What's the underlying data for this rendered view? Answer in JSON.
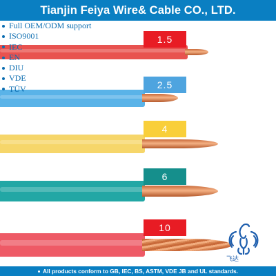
{
  "header": {
    "title": "Tianjin Feiya Wire& Cable CO., LTD."
  },
  "features": [
    "Full OEM/ODM support",
    "ISO9001",
    "IEC",
    "EN",
    "DIU",
    "VDE",
    "TÜV"
  ],
  "wires": [
    {
      "label": "1.5",
      "insulation_color": "#e8524f",
      "label_bg": "#e81c24",
      "label_text_color": "#ffffff"
    },
    {
      "label": "2.5",
      "insulation_color": "#5ab3e8",
      "label_bg": "#4ea4df",
      "label_text_color": "#ffffff"
    },
    {
      "label": "4",
      "insulation_color": "#f6d66a",
      "label_bg": "#f9cf3a",
      "label_text_color": "#ffffff"
    },
    {
      "label": "6",
      "insulation_color": "#22a7a5",
      "label_bg": "#158f8c",
      "label_text_color": "#ffffff"
    },
    {
      "label": "10",
      "insulation_color": "#ee5a66",
      "label_bg": "#e81c24",
      "label_text_color": "#ffffff"
    }
  ],
  "footer": {
    "text": "All products conform to GB, IEC, BS, ASTM, VDE JB and UL standards."
  },
  "logo": {
    "icon": "phoenix-logo-icon",
    "text": "飞达"
  },
  "colors": {
    "brand_blue": "#0a7fc2",
    "copper": "#e7a070"
  }
}
